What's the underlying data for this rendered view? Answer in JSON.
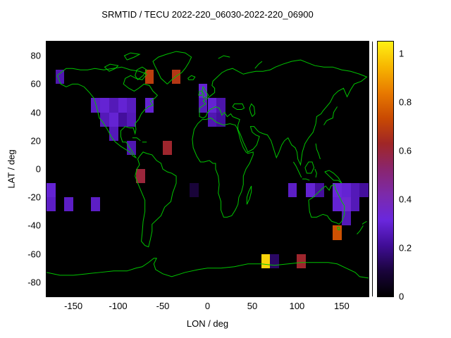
{
  "title": "SRMTID / TECU 2022-220_06030-2022-220_06900",
  "chart_data": {
    "type": "heatmap",
    "title": "SRMTID / TECU 2022-220_06030-2022-220_06900",
    "xlabel": "LON / deg",
    "ylabel": "LAT / deg",
    "xlim": [
      -180,
      180
    ],
    "ylim": [
      -90,
      90
    ],
    "x_ticks": [
      -150,
      -100,
      -50,
      0,
      50,
      100,
      150
    ],
    "y_ticks": [
      -80,
      -60,
      -40,
      -20,
      0,
      20,
      40,
      60,
      80
    ],
    "bin_size_deg": 10,
    "plot_background": "#000000",
    "coastline_color": "#00c400",
    "colorbar": {
      "min": 0,
      "max": 1.05,
      "tick_values": [
        0,
        0.2,
        0.4,
        0.6,
        0.8,
        1
      ],
      "tick_labels": [
        "0",
        "0.2",
        "0.4",
        "0.6",
        "0.8",
        "1"
      ]
    },
    "palette_stops": [
      [
        0.0,
        "#000000"
      ],
      [
        0.1,
        "#1a043c"
      ],
      [
        0.2,
        "#400d96"
      ],
      [
        0.3,
        "#6a27dd"
      ],
      [
        0.4,
        "#7c2aaa"
      ],
      [
        0.5,
        "#8a256e"
      ],
      [
        0.6,
        "#a02626"
      ],
      [
        0.7,
        "#c94a02"
      ],
      [
        0.8,
        "#e87a00"
      ],
      [
        0.9,
        "#f7b500"
      ],
      [
        1.0,
        "#fff014"
      ]
    ],
    "cells": [
      {
        "lon": -170,
        "lat": 60,
        "value": 0.25
      },
      {
        "lon": -70,
        "lat": 60,
        "value": 0.7
      },
      {
        "lon": -40,
        "lat": 60,
        "value": 0.68
      },
      {
        "lon": -130,
        "lat": 40,
        "value": 0.28
      },
      {
        "lon": -120,
        "lat": 40,
        "value": 0.3
      },
      {
        "lon": -110,
        "lat": 40,
        "value": 0.26
      },
      {
        "lon": -100,
        "lat": 40,
        "value": 0.3
      },
      {
        "lon": -90,
        "lat": 40,
        "value": 0.27
      },
      {
        "lon": -70,
        "lat": 40,
        "value": 0.3
      },
      {
        "lon": -10,
        "lat": 50,
        "value": 0.3
      },
      {
        "lon": -10,
        "lat": 40,
        "value": 0.26
      },
      {
        "lon": 0,
        "lat": 40,
        "value": 0.3
      },
      {
        "lon": 10,
        "lat": 40,
        "value": 0.24
      },
      {
        "lon": -120,
        "lat": 30,
        "value": 0.26
      },
      {
        "lon": -110,
        "lat": 30,
        "value": 0.3
      },
      {
        "lon": -100,
        "lat": 30,
        "value": 0.22
      },
      {
        "lon": -90,
        "lat": 30,
        "value": 0.26
      },
      {
        "lon": 0,
        "lat": 30,
        "value": 0.25
      },
      {
        "lon": 10,
        "lat": 30,
        "value": 0.22
      },
      {
        "lon": -110,
        "lat": 20,
        "value": 0.26
      },
      {
        "lon": -90,
        "lat": 10,
        "value": 0.25
      },
      {
        "lon": -50,
        "lat": 10,
        "value": 0.62
      },
      {
        "lon": -80,
        "lat": -10,
        "value": 0.6
      },
      {
        "lon": -180,
        "lat": -20,
        "value": 0.3
      },
      {
        "lon": -20,
        "lat": -20,
        "value": 0.1
      },
      {
        "lon": -180,
        "lat": -30,
        "value": 0.28
      },
      {
        "lon": -160,
        "lat": -30,
        "value": 0.28
      },
      {
        "lon": -130,
        "lat": -30,
        "value": 0.28
      },
      {
        "lon": 90,
        "lat": -20,
        "value": 0.28
      },
      {
        "lon": 110,
        "lat": -20,
        "value": 0.3
      },
      {
        "lon": 120,
        "lat": -20,
        "value": 0.22
      },
      {
        "lon": 140,
        "lat": -20,
        "value": 0.32
      },
      {
        "lon": 150,
        "lat": -20,
        "value": 0.3
      },
      {
        "lon": 160,
        "lat": -20,
        "value": 0.26
      },
      {
        "lon": 170,
        "lat": -20,
        "value": 0.22
      },
      {
        "lon": 140,
        "lat": -30,
        "value": 0.3
      },
      {
        "lon": 150,
        "lat": -30,
        "value": 0.34
      },
      {
        "lon": 160,
        "lat": -30,
        "value": 0.26
      },
      {
        "lon": 150,
        "lat": -40,
        "value": 0.26
      },
      {
        "lon": 140,
        "lat": -50,
        "value": 0.75
      },
      {
        "lon": 60,
        "lat": -70,
        "value": 1.0
      },
      {
        "lon": 70,
        "lat": -70,
        "value": 0.15
      },
      {
        "lon": 100,
        "lat": -70,
        "value": 0.62
      }
    ]
  }
}
